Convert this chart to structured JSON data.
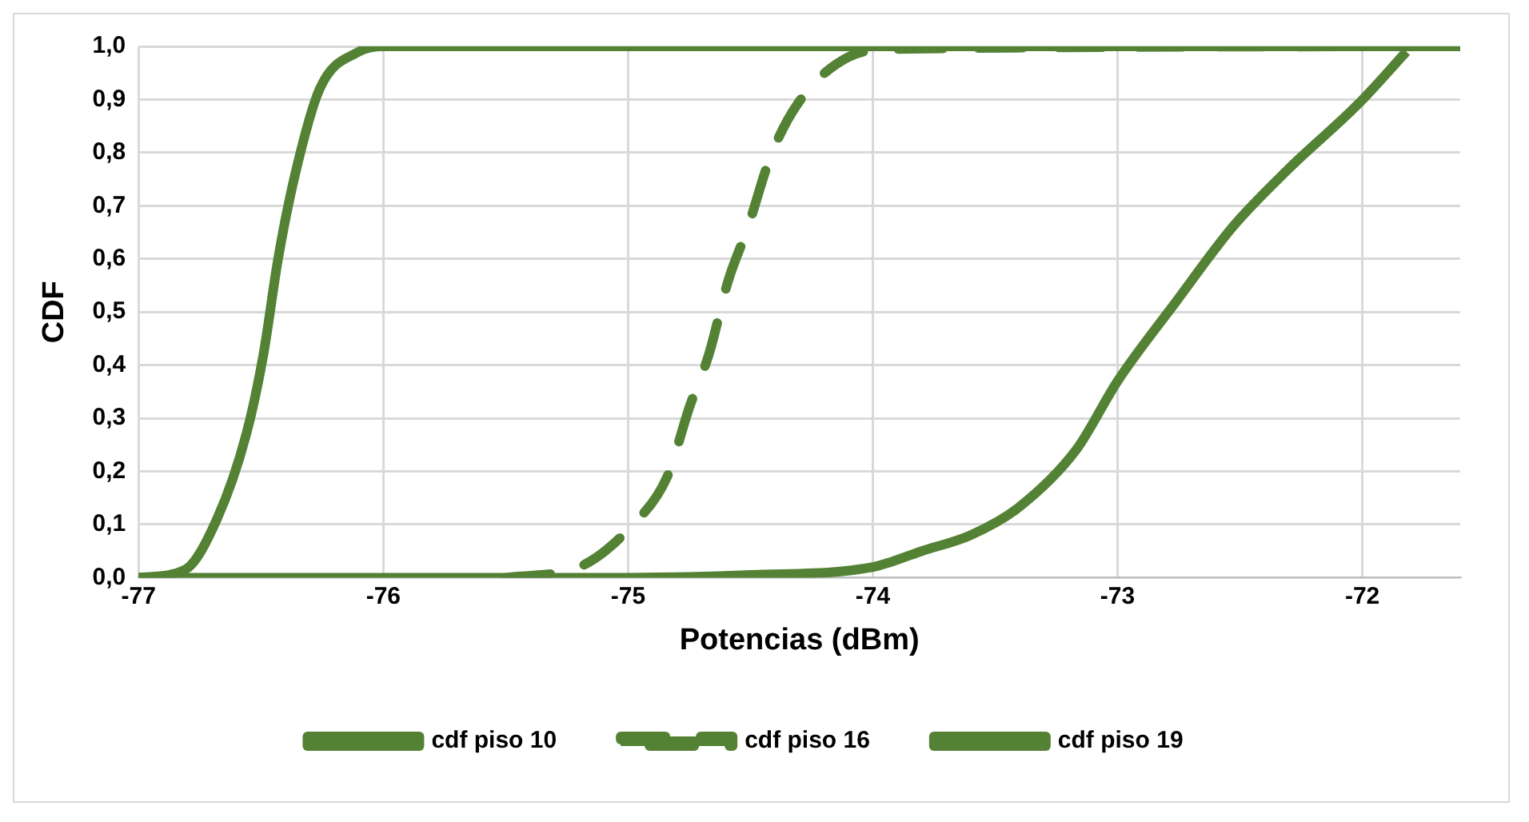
{
  "chart_data": {
    "type": "line",
    "xlabel": "Potencias (dBm)",
    "ylabel": "CDF",
    "xlim": [
      -77,
      -71.6
    ],
    "xticks": [
      -77,
      -76,
      -75,
      -74,
      -73,
      -72
    ],
    "ylim": [
      0,
      1
    ],
    "yticks": [
      {
        "value": 0,
        "label": "0,0"
      },
      {
        "value": 0.1,
        "label": "0,1"
      },
      {
        "value": 0.2,
        "label": "0,2"
      },
      {
        "value": 0.3,
        "label": "0,3"
      },
      {
        "value": 0.4,
        "label": "0,4"
      },
      {
        "value": 0.5,
        "label": "0,5"
      },
      {
        "value": 0.6,
        "label": "0,6"
      },
      {
        "value": 0.7,
        "label": "0,7"
      },
      {
        "value": 0.8,
        "label": "0,8"
      },
      {
        "value": 0.9,
        "label": "0,9"
      },
      {
        "value": 1,
        "label": "1,0"
      }
    ],
    "grid": true,
    "legend": "bottom",
    "marker": "none",
    "series": [
      {
        "name": "cdf piso 10",
        "color": "#548235",
        "line_style": "solid",
        "x": [
          -77,
          -76.81,
          -76.68,
          -76.56,
          -76.49,
          -76.43,
          -76.36,
          -76.26,
          -76.1,
          -76,
          -71.6
        ],
        "values": [
          0,
          0.015,
          0.11,
          0.27,
          0.42,
          0.6,
          0.76,
          0.92,
          0.99,
          1,
          1
        ]
      },
      {
        "name": "cdf piso 16",
        "color": "#548235",
        "line_style": "dashed",
        "x": [
          -75.5,
          -75.2,
          -74.98,
          -74.84,
          -74.75,
          -74.67,
          -74.59,
          -74.51,
          -74.42,
          -74.31,
          -74.1,
          -73.91,
          -71.6
        ],
        "values": [
          0,
          0.02,
          0.1,
          0.19,
          0.32,
          0.42,
          0.56,
          0.66,
          0.79,
          0.89,
          0.98,
          0.995,
          1
        ]
      },
      {
        "name": "cdf piso 19",
        "color": "#548235",
        "line_style": "solid",
        "x": [
          -77,
          -75,
          -74.5,
          -74,
          -73.8,
          -73.6,
          -73.41,
          -73.17,
          -73,
          -72.76,
          -72.53,
          -72.3,
          -72.02,
          -71.82
        ],
        "values": [
          0,
          0,
          0.005,
          0.02,
          0.05,
          0.08,
          0.13,
          0.24,
          0.37,
          0.52,
          0.66,
          0.77,
          0.89,
          0.99
        ]
      }
    ]
  }
}
